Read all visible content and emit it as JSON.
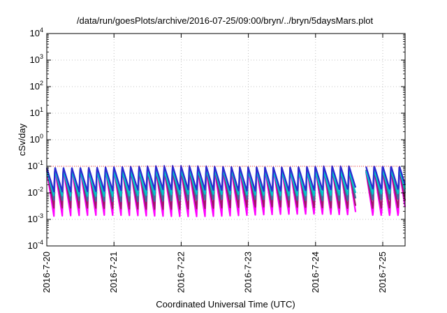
{
  "chart_data": {
    "type": "line",
    "title": "/data/run/goesPlots/archive/2016-07-25/09:00/bryn/../bryn/5daysMars.plot",
    "xlabel": "Coordinated Universal Time (UTC)",
    "ylabel": "cSv/day",
    "yscale": "log",
    "ylim": [
      0.0001,
      10000
    ],
    "xlim": [
      "2016-07-20 00:00",
      "2016-07-25 09:00"
    ],
    "x_ticks": [
      "2016-7-20",
      "2016-7-21",
      "2016-7-22",
      "2016-7-23",
      "2016-7-24",
      "2016-7-25"
    ],
    "y_ticks": [
      {
        "base": "10",
        "exp": "-4"
      },
      {
        "base": "10",
        "exp": "-3"
      },
      {
        "base": "10",
        "exp": "-2"
      },
      {
        "base": "10",
        "exp": "-1"
      },
      {
        "base": "10",
        "exp": "0"
      },
      {
        "base": "10",
        "exp": "1"
      },
      {
        "base": "10",
        "exp": "2"
      },
      {
        "base": "10",
        "exp": "3"
      },
      {
        "base": "10",
        "exp": "4"
      }
    ],
    "grid": true,
    "reference_line": {
      "value": 0.1,
      "color": "#ff0000",
      "style": "dotted"
    },
    "oscillation_cycles_per_day": 8,
    "series": [
      {
        "color": "#ff00ff",
        "peak": 0.08,
        "trough": 0.0013
      },
      {
        "color": "#a0156a",
        "peak": 0.085,
        "trough": 0.0025
      },
      {
        "color": "#3c6e9c",
        "peak": 0.09,
        "trough": 0.005
      },
      {
        "color": "#00c8c8",
        "peak": 0.07,
        "trough": 0.008
      },
      {
        "color": "#2a2ad0",
        "peak": 0.1,
        "trough": 0.012
      }
    ],
    "data_gaps_days": [
      [
        4.6,
        4.75
      ]
    ]
  }
}
